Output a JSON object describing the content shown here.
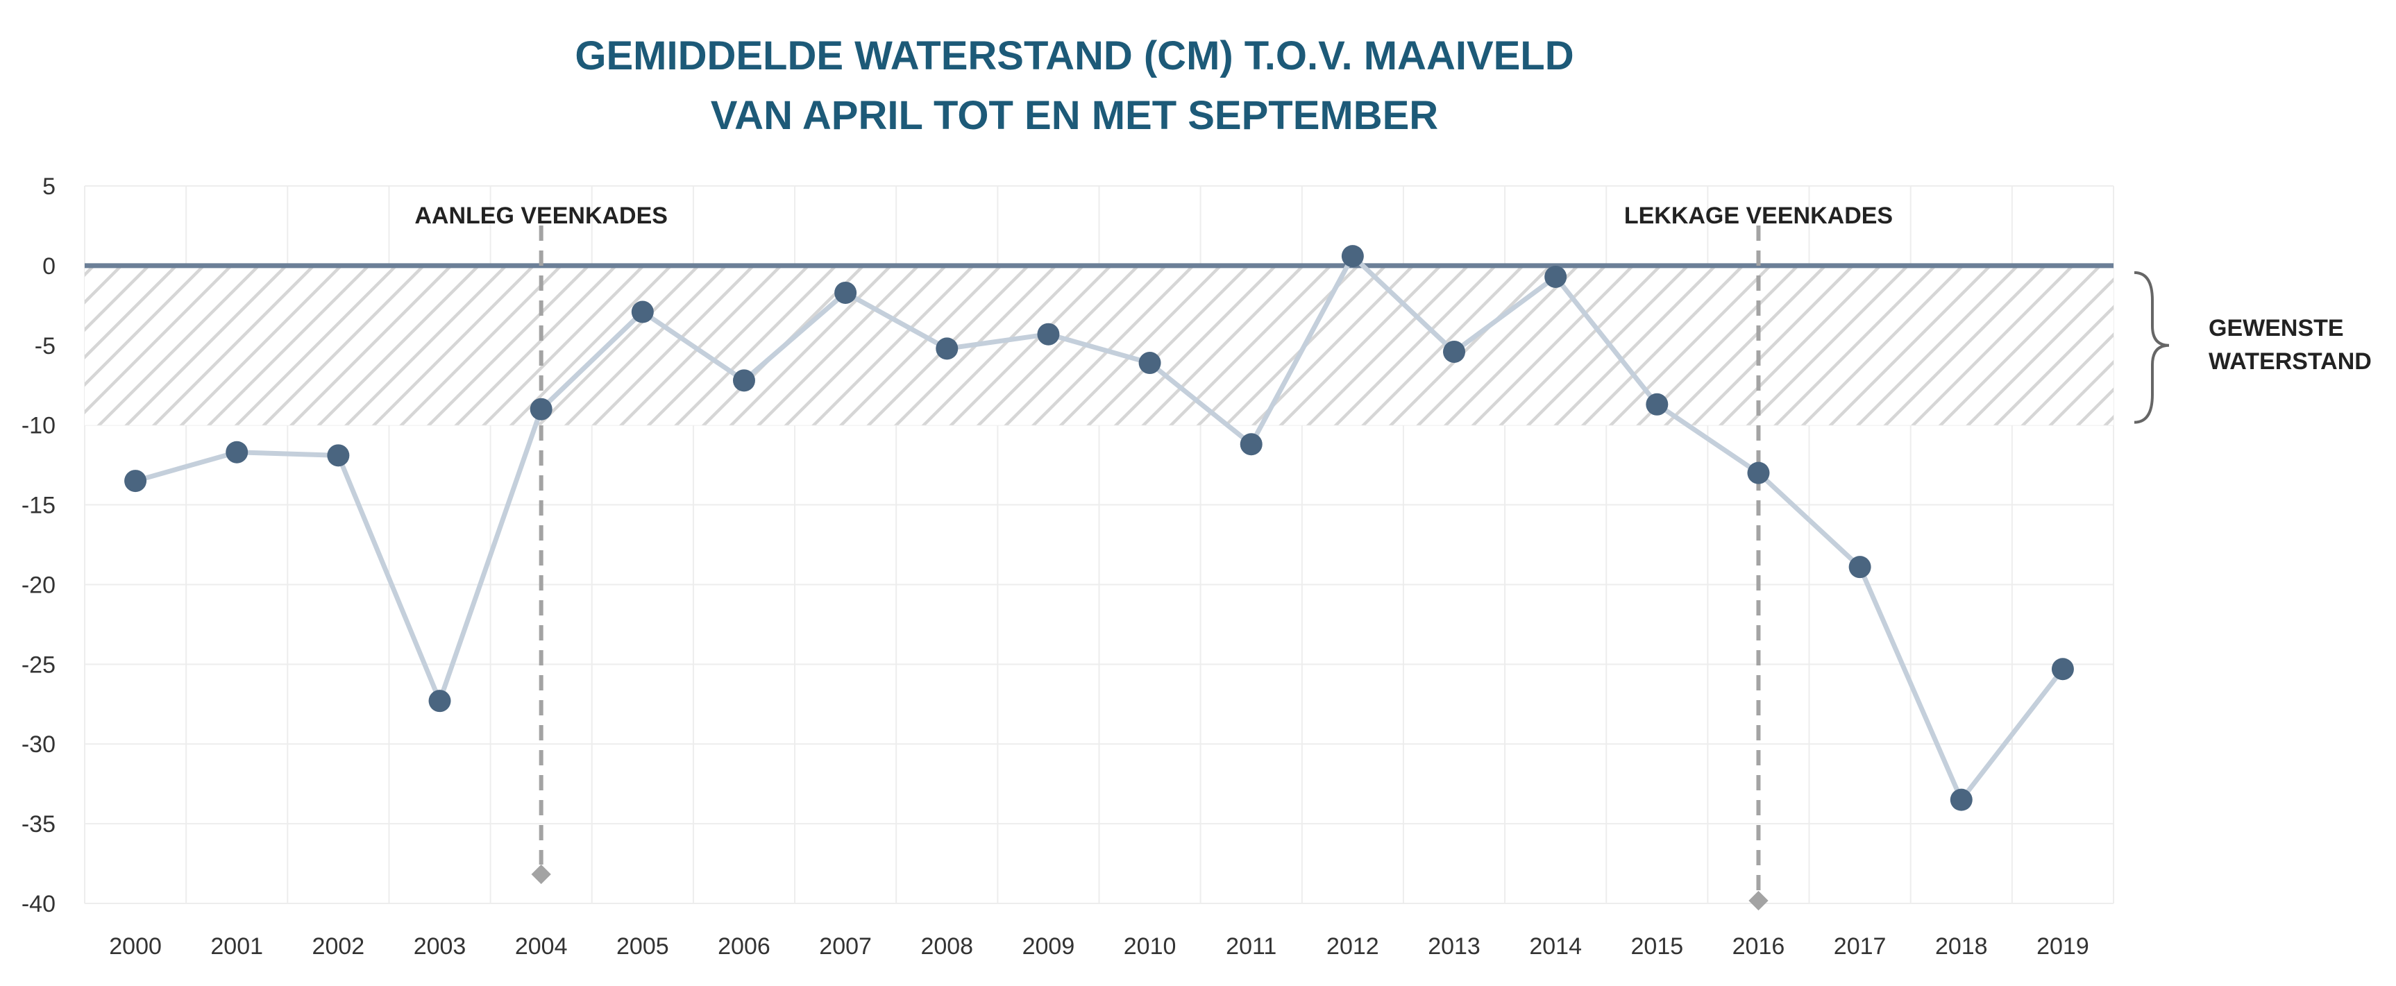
{
  "chart_data": {
    "type": "line",
    "title": [
      "GEMIDDELDE WATERSTAND (CM) T.O.V. MAAIVELD",
      "VAN APRIL TOT EN MET SEPTEMBER"
    ],
    "xlabel": "",
    "ylabel": "",
    "categories": [
      "2000",
      "2001",
      "2002",
      "2003",
      "2004",
      "2005",
      "2006",
      "2007",
      "2008",
      "2009",
      "2010",
      "2011",
      "2012",
      "2013",
      "2014",
      "2015",
      "2016",
      "2017",
      "2018",
      "2019"
    ],
    "values": [
      -13.5,
      -11.7,
      -11.9,
      -27.3,
      -9.0,
      -2.9,
      -7.2,
      -1.7,
      -5.2,
      -4.3,
      -6.1,
      -11.2,
      0.6,
      -5.4,
      -0.7,
      -8.7,
      -13.0,
      -18.9,
      -33.5,
      -25.3
    ],
    "ylim": [
      -40,
      5
    ],
    "yticks": [
      5,
      0,
      -5,
      -10,
      -15,
      -20,
      -25,
      -30,
      -35,
      -40
    ],
    "grid": true,
    "reference_line": 0,
    "band": {
      "from": -10,
      "to": 0,
      "label": [
        "GEWENSTE",
        "WATERSTAND"
      ]
    },
    "annotations": [
      {
        "x": "2004",
        "label": "AANLEG VEENKADES"
      },
      {
        "x": "2016",
        "label": "LEKKAGE VEENKADES"
      }
    ],
    "colors": {
      "title": "#1d5a78",
      "line": "#c4cfdb",
      "marker": "#4a6580",
      "reference": "#6b7f97",
      "hatch": "#d6d6d6",
      "annotation": "#a3a3a3"
    }
  }
}
